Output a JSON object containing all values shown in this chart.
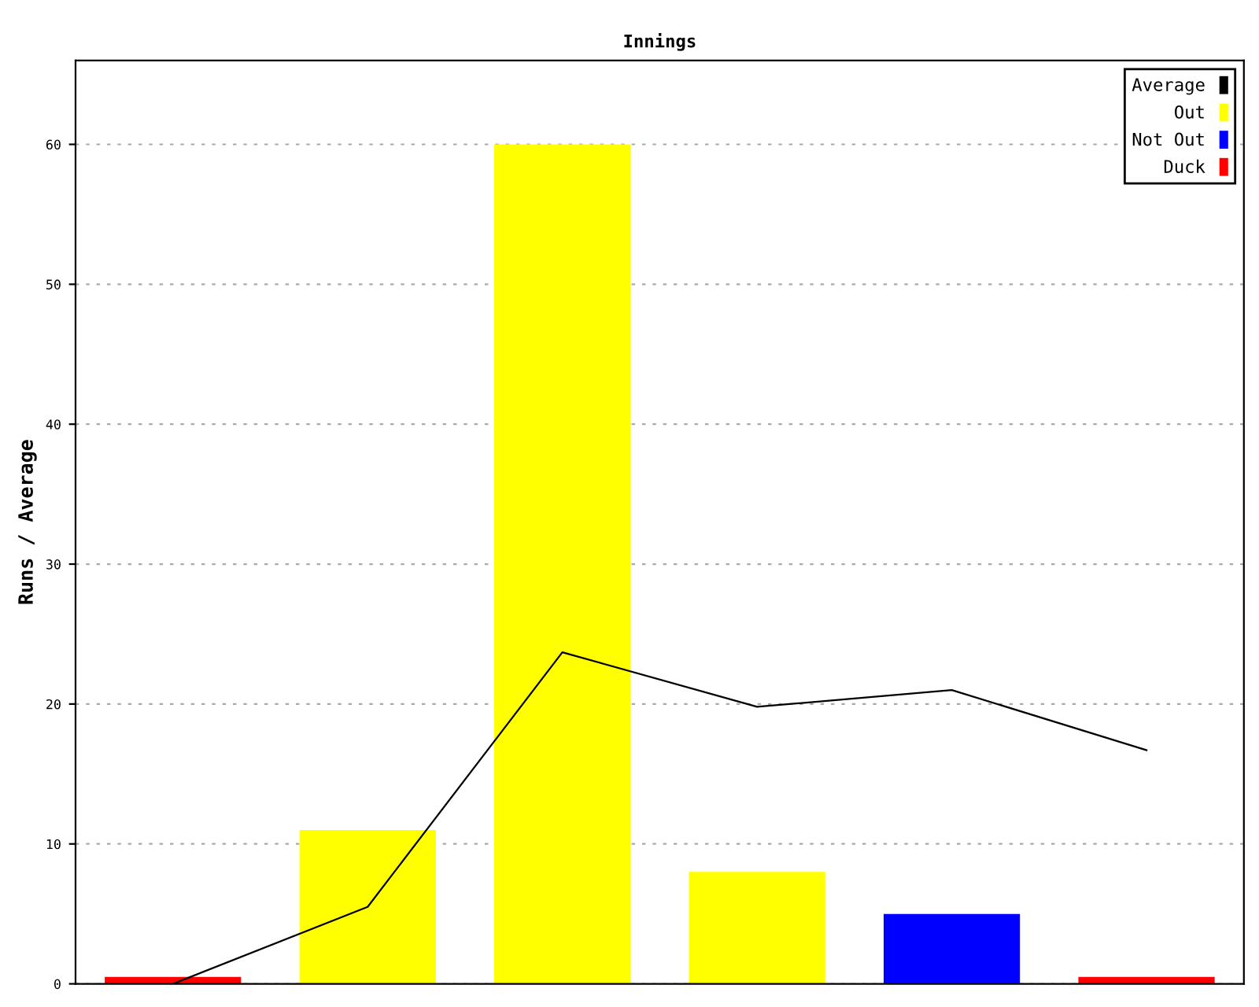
{
  "chart_data": {
    "type": "bar",
    "title": "Innings",
    "ylabel": "Runs / Average",
    "categories": [
      null,
      null,
      null,
      null,
      null,
      null
    ],
    "series": [
      {
        "name": "Average",
        "type": "line",
        "color": "#000000",
        "values": [
          0,
          5.5,
          23.7,
          19.8,
          21,
          16.7
        ]
      },
      {
        "name": "Out",
        "color": "#ffff00",
        "values": [
          null,
          11,
          60,
          8,
          null,
          null
        ]
      },
      {
        "name": "Not Out",
        "color": "#0000ff",
        "values": [
          null,
          null,
          null,
          null,
          5,
          null
        ]
      },
      {
        "name": "Duck",
        "color": "#ff0000",
        "values": [
          0.5,
          null,
          null,
          null,
          null,
          0.5
        ]
      }
    ],
    "ylim": [
      0,
      66
    ],
    "yticks": [
      0,
      10,
      20,
      30,
      40,
      50,
      60
    ],
    "grid": "y",
    "legend": "top right",
    "marker": "none",
    "line_style": "solid"
  }
}
